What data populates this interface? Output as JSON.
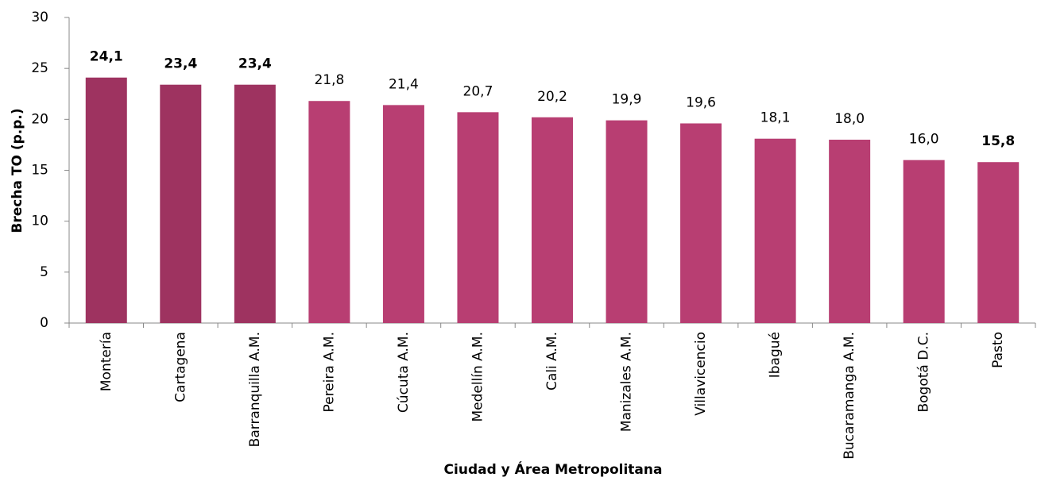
{
  "chart_data": {
    "type": "bar",
    "x_label": "Ciudad y Área Metropolitana",
    "y_label": "Brecha TO (p.p.)",
    "categories": [
      "Montería",
      "Cartagena",
      "Barranquilla A.M.",
      "Pereira A.M.",
      "Cúcuta A.M.",
      "Medellín A.M.",
      "Cali A.M.",
      "Manizales A.M.",
      "Villavicencio",
      "Ibagué",
      "Bucaramanga A.M.",
      "Bogotá D.C.",
      "Pasto"
    ],
    "values": [
      24.1,
      23.4,
      23.4,
      21.8,
      21.4,
      20.7,
      20.2,
      19.9,
      19.6,
      18.1,
      18.0,
      16.0,
      15.8
    ],
    "value_labels": [
      "24,1",
      "23,4",
      "23,4",
      "21,8",
      "21,4",
      "20,7",
      "20,2",
      "19,9",
      "19,6",
      "18,1",
      "18,0",
      "16,0",
      "15,8"
    ],
    "value_label_bold": [
      true,
      true,
      true,
      false,
      false,
      false,
      false,
      false,
      false,
      false,
      false,
      false,
      true
    ],
    "colors": [
      "#9e3360",
      "#9e3360",
      "#9e3360",
      "#b83e72",
      "#b83e72",
      "#b83e72",
      "#b83e72",
      "#b83e72",
      "#b83e72",
      "#b83e72",
      "#b83e72",
      "#b83e72",
      "#b83e72"
    ],
    "ylim": [
      0,
      30
    ],
    "yticks": [
      0,
      5,
      10,
      15,
      20,
      25,
      30
    ],
    "grid": false
  }
}
